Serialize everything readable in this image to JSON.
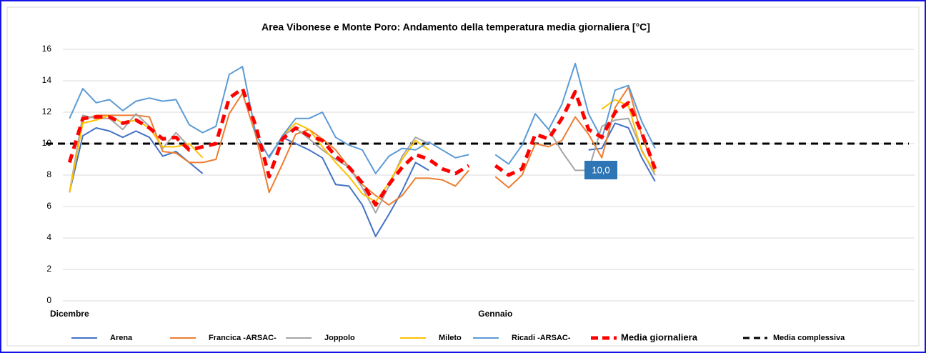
{
  "chart_data": {
    "type": "line",
    "title": "Area Vibonese e Monte Poro: Andamento della temperatura media giornaliera [°C]",
    "categories": [
      "Dicembre",
      null,
      null,
      null,
      null,
      null,
      null,
      null,
      null,
      null,
      null,
      null,
      null,
      null,
      null,
      null,
      null,
      null,
      null,
      null,
      null,
      null,
      null,
      null,
      null,
      null,
      null,
      null,
      null,
      null,
      null,
      null,
      "Gennaio",
      null,
      null,
      null,
      null,
      null,
      null,
      null,
      null,
      null,
      null,
      null,
      null,
      null,
      null,
      null,
      null,
      null,
      null,
      null,
      null,
      null,
      null,
      null,
      null,
      null,
      null,
      null,
      null,
      null,
      null,
      null
    ],
    "ylim": [
      0,
      16
    ],
    "yticks": [
      0,
      2,
      4,
      6,
      8,
      10,
      12,
      14,
      16
    ],
    "grid": true,
    "series": [
      {
        "name": "Arena",
        "color": "#4472c4",
        "dashed": false,
        "values": [
          6.9,
          10.5,
          11.0,
          10.8,
          10.4,
          10.8,
          10.4,
          9.2,
          9.5,
          8.8,
          8.1,
          null,
          null,
          null,
          null,
          9.2,
          10.4,
          10.0,
          9.6,
          9.1,
          7.4,
          7.3,
          6.1,
          4.1,
          5.5,
          7.0,
          8.8,
          8.3,
          null,
          null,
          null,
          null,
          null,
          null,
          null,
          null,
          null,
          null,
          null,
          9.6,
          9.7,
          11.3,
          11.0,
          9.1,
          7.6,
          null,
          null,
          null,
          null,
          null,
          null,
          null,
          null,
          null,
          null,
          null,
          null,
          null,
          null,
          null,
          null,
          null,
          null,
          null
        ]
      },
      {
        "name": "Francica -ARSAC-",
        "color": "#ed7d31",
        "dashed": false,
        "values": [
          6.9,
          11.5,
          11.8,
          11.8,
          11.8,
          11.8,
          11.7,
          9.5,
          9.4,
          8.8,
          8.8,
          9.0,
          11.9,
          13.2,
          10.5,
          6.9,
          8.7,
          10.6,
          10.9,
          10.3,
          9.6,
          8.5,
          7.4,
          6.7,
          6.1,
          6.7,
          7.8,
          7.8,
          7.7,
          7.3,
          8.3,
          null,
          7.9,
          7.2,
          8.0,
          10.0,
          9.8,
          10.2,
          11.7,
          10.6,
          9.1,
          12.3,
          13.6,
          10.5,
          8.4,
          null,
          null,
          null,
          null,
          null,
          null,
          null,
          null,
          null,
          null,
          null,
          null,
          null,
          null,
          null,
          null,
          null,
          null,
          null
        ]
      },
      {
        "name": "Joppolo",
        "color": "#a5a5a5",
        "dashed": false,
        "values": [
          6.9,
          11.8,
          11.6,
          11.6,
          10.9,
          11.9,
          11.1,
          9.7,
          10.7,
          9.8,
          null,
          null,
          null,
          null,
          null,
          null,
          10.5,
          11.0,
          10.3,
          9.6,
          9.0,
          8.5,
          7.2,
          5.6,
          7.3,
          9.2,
          10.4,
          10.0,
          null,
          null,
          null,
          null,
          null,
          null,
          null,
          null,
          10.9,
          9.5,
          8.3,
          8.3,
          11.1,
          11.5,
          11.6,
          9.6,
          8.0,
          null,
          null,
          null,
          null,
          null,
          null,
          null,
          null,
          null,
          null,
          null,
          null,
          null,
          null,
          null,
          null,
          null,
          null,
          null
        ]
      },
      {
        "name": "Mileto",
        "color": "#ffc000",
        "dashed": false,
        "values": [
          6.9,
          11.3,
          11.5,
          11.8,
          11.3,
          11.5,
          11.0,
          9.8,
          9.8,
          10.0,
          9.1,
          null,
          null,
          null,
          null,
          null,
          10.5,
          11.3,
          10.9,
          9.8,
          8.8,
          7.9,
          6.8,
          6.3,
          7.5,
          9.0,
          10.2,
          9.6,
          null,
          null,
          null,
          null,
          null,
          null,
          null,
          null,
          null,
          null,
          null,
          null,
          12.2,
          12.8,
          12.4,
          9.5,
          8.2,
          null,
          null,
          null,
          null,
          null,
          null,
          null,
          null,
          null,
          null,
          null,
          null,
          null,
          null,
          null,
          null,
          null,
          null,
          null
        ]
      },
      {
        "name": "Ricadi -ARSAC-",
        "color": "#5b9bd5",
        "dashed": false,
        "values": [
          11.6,
          13.5,
          12.6,
          12.8,
          12.1,
          12.7,
          12.9,
          12.7,
          12.8,
          11.2,
          10.7,
          11.1,
          14.4,
          14.9,
          10.6,
          9.1,
          10.5,
          11.6,
          11.6,
          12.0,
          10.4,
          9.9,
          9.6,
          8.1,
          9.2,
          9.7,
          9.6,
          10.1,
          9.6,
          9.1,
          9.3,
          null,
          9.3,
          8.7,
          9.9,
          11.9,
          10.9,
          12.5,
          15.1,
          11.9,
          10.3,
          13.4,
          13.7,
          11.4,
          9.7,
          null,
          null,
          null,
          null,
          null,
          null,
          null,
          null,
          null,
          null,
          null,
          null,
          null,
          null,
          null,
          null,
          null,
          null,
          null
        ]
      },
      {
        "name": "Media giornaliera",
        "color": "#ff0000",
        "dashed": true,
        "values": [
          8.8,
          11.6,
          11.7,
          11.7,
          11.3,
          11.5,
          11.0,
          10.3,
          10.4,
          9.6,
          9.8,
          10.0,
          12.9,
          13.5,
          11.1,
          7.9,
          10.3,
          11.0,
          10.5,
          10.2,
          9.2,
          8.5,
          7.5,
          6.1,
          7.4,
          8.5,
          9.3,
          9.0,
          8.4,
          8.1,
          8.6,
          null,
          8.6,
          8.0,
          8.4,
          10.6,
          10.3,
          11.6,
          13.3,
          10.9,
          10.4,
          12.0,
          12.6,
          10.7,
          8.4,
          null,
          null,
          null,
          null,
          null,
          null,
          null,
          null,
          null,
          null,
          null,
          null,
          null,
          null,
          null,
          null,
          null,
          null,
          null
        ]
      }
    ],
    "mean_line": {
      "name": "Media complessiva",
      "color": "#000000",
      "value": 10,
      "value_label": "10,0"
    }
  }
}
